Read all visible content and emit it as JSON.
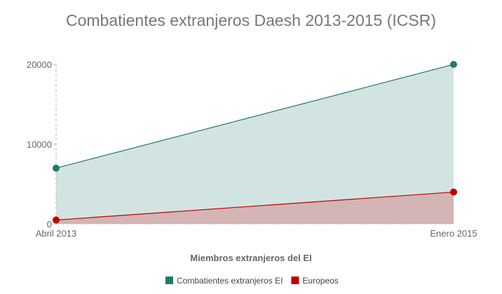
{
  "chart_data": {
    "type": "area",
    "title": "Combatientes extranjeros Daesh 2013-2015 (ICSR)",
    "xlabel": "Miembros extranjeros del EI",
    "ylabel": "",
    "categories": [
      "Abril 2013",
      "Enero 2015"
    ],
    "yticks": [
      0,
      10000,
      20000
    ],
    "ylim": [
      0,
      20000
    ],
    "legend_position": "bottom",
    "series": [
      {
        "name": "Combatientes extranjeros EI",
        "values": [
          7000,
          20000
        ],
        "color": "#217a6e",
        "fill": "#d2e4e2"
      },
      {
        "name": "Europeos",
        "values": [
          500,
          4000
        ],
        "color": "#c00000",
        "fill": "#d4b4b4"
      }
    ]
  }
}
